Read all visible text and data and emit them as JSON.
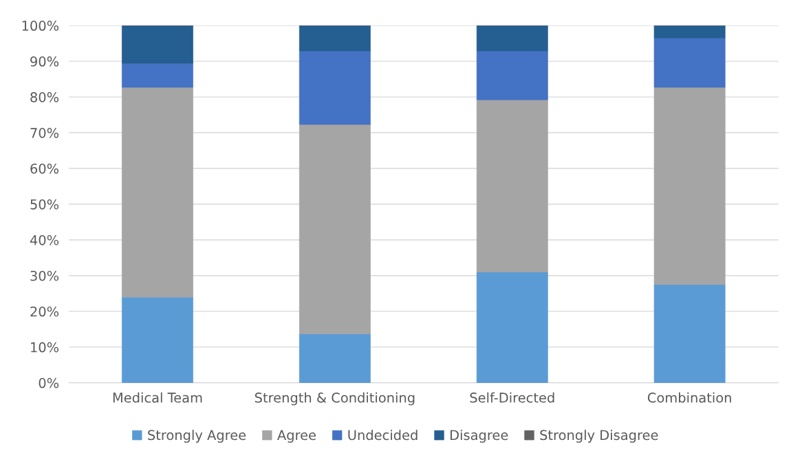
{
  "chart_data": {
    "type": "bar",
    "stacked": true,
    "categories": [
      "Medical Team",
      "Strength & Conditioning",
      "Self-Directed",
      "Combination"
    ],
    "series": [
      {
        "name": "Strongly Agree",
        "color": "#5b9bd5",
        "values": [
          24.0,
          13.7,
          31.0,
          27.5
        ]
      },
      {
        "name": "Agree",
        "color": "#a5a5a5",
        "values": [
          58.7,
          58.6,
          48.2,
          55.2
        ]
      },
      {
        "name": "Undecided",
        "color": "#4472c4",
        "values": [
          6.7,
          20.6,
          13.7,
          13.8
        ]
      },
      {
        "name": "Disagree",
        "color": "#255e91",
        "values": [
          10.6,
          7.1,
          7.1,
          3.5
        ]
      },
      {
        "name": "Strongly Disagree",
        "color": "#636363",
        "values": [
          0,
          0,
          0,
          0
        ]
      }
    ],
    "ylim": [
      0,
      100
    ],
    "yticks": [
      {
        "value": 0,
        "label": "0%"
      },
      {
        "value": 10,
        "label": "10%"
      },
      {
        "value": 20,
        "label": "20%"
      },
      {
        "value": 30,
        "label": "30%"
      },
      {
        "value": 40,
        "label": "40%"
      },
      {
        "value": 50,
        "label": "50%"
      },
      {
        "value": 60,
        "label": "60%"
      },
      {
        "value": 70,
        "label": "70%"
      },
      {
        "value": 80,
        "label": "80%"
      },
      {
        "value": 90,
        "label": "90%"
      },
      {
        "value": 100,
        "label": "100%"
      }
    ],
    "grid": "y",
    "legend": "bottom"
  }
}
